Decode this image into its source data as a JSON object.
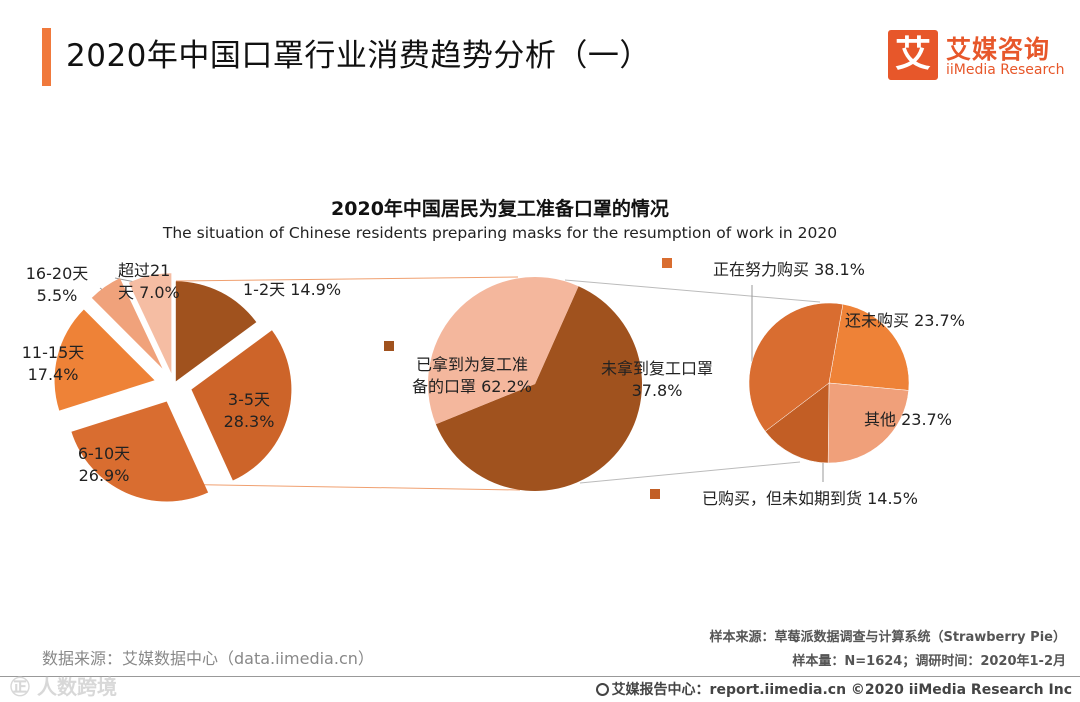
{
  "header": {
    "title": "2020年中国口罩行业消费趋势分析（一）",
    "accent_color": "#f0793c"
  },
  "logo": {
    "mark": "艾",
    "name_cn": "艾媒咨询",
    "name_en": "iiMedia Research",
    "color": "#e7572a"
  },
  "chart_data": [
    {
      "type": "pie",
      "title": "2020年中国居民为复工准备口罩的情况",
      "subtitle": "The situation of Chinese residents preparing masks for the resumption of work in 2020",
      "slices": [
        {
          "label": "已拿到为复工准备的口罩",
          "value": 62.2,
          "text": "已拿到为复工准\n备的口罩 62.2%",
          "color": "#a0521e"
        },
        {
          "label": "未拿到复工口罩",
          "value": 37.8,
          "text": "未拿到复工口罩\n37.8%",
          "color": "#f4b79d"
        }
      ]
    },
    {
      "type": "pie",
      "breakdown_of": "已拿到为复工准备的口罩",
      "slices": [
        {
          "label": "1-2天",
          "value": 14.9,
          "text": "1-2天 14.9%",
          "color": "#a0521e"
        },
        {
          "label": "3-5天",
          "value": 28.3,
          "text": "3-5天\n28.3%",
          "color": "#cd6429"
        },
        {
          "label": "6-10天",
          "value": 26.9,
          "text": "6-10天\n26.9%",
          "color": "#d96d30"
        },
        {
          "label": "11-15天",
          "value": 17.4,
          "text": "11-15天\n17.4%",
          "color": "#ee8237"
        },
        {
          "label": "16-20天",
          "value": 5.5,
          "text": "16-20天\n5.5%",
          "color": "#f0a27b"
        },
        {
          "label": "超过21天",
          "value": 7.0,
          "text": "超过21\n天 7.0%",
          "color": "#f5bda3"
        }
      ]
    },
    {
      "type": "pie",
      "breakdown_of": "未拿到复工口罩",
      "slices": [
        {
          "label": "还未购买",
          "value": 23.7,
          "text": "还未购买 23.7%",
          "color": "#ee8237"
        },
        {
          "label": "其他",
          "value": 23.7,
          "text": "其他 23.7%",
          "color": "#f0a07a"
        },
        {
          "label": "已购买，但未如期到货",
          "value": 14.5,
          "text": "已购买，但未如期到货 14.5%",
          "color": "#c25e25"
        },
        {
          "label": "正在努力购买",
          "value": 38.1,
          "text": "正在努力购买 38.1%",
          "color": "#d96d30"
        }
      ]
    }
  ],
  "footer": {
    "source": "数据来源：艾媒数据中心（data.iimedia.cn）",
    "sample_source": "样本来源：草莓派数据调查与计算系统（Strawberry Pie）",
    "sample_size": "样本量：N=1624；调研时间：2020年1-2月",
    "report_center": "艾媒报告中心：report.iimedia.cn  ©2020  iiMedia Research  Inc",
    "watermark": "㊣ 人数跨境"
  }
}
